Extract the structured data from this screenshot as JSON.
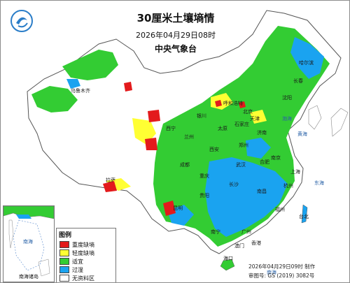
{
  "title": "30厘米土壤墒情",
  "datetime": "2026年04月29日08时",
  "agency": "中央气象台",
  "legend": {
    "title": "图例",
    "items": [
      {
        "label": "重度缺墒",
        "color": "#e31a1c"
      },
      {
        "label": "轻度缺墒",
        "color": "#ffff33"
      },
      {
        "label": "适宜",
        "color": "#33cc33"
      },
      {
        "label": "过湿",
        "color": "#1aa3f0"
      },
      {
        "label": "无资料区",
        "color": "#ffffff"
      }
    ]
  },
  "inset": {
    "caption": "南海诸岛",
    "sea_label": "南海"
  },
  "footer": {
    "made": "2026年04月29日09时 制作",
    "approval": "审图号: GS (2019) 3082号"
  },
  "cities": [
    "乌鲁木齐",
    "兰州",
    "西宁",
    "拉萨",
    "银川",
    "呼和浩特",
    "北京",
    "天津",
    "石家庄",
    "太原",
    "济南",
    "郑州",
    "西安",
    "成都",
    "重庆",
    "贵阳",
    "昆明",
    "长沙",
    "武汉",
    "合肥",
    "南京",
    "上海",
    "杭州",
    "南昌",
    "福州",
    "广州",
    "南宁",
    "海口",
    "沈阳",
    "长春",
    "哈尔滨",
    "台北",
    "香港",
    "澳门"
  ],
  "seas": [
    "渤海",
    "黄海",
    "东海",
    "南海"
  ]
}
